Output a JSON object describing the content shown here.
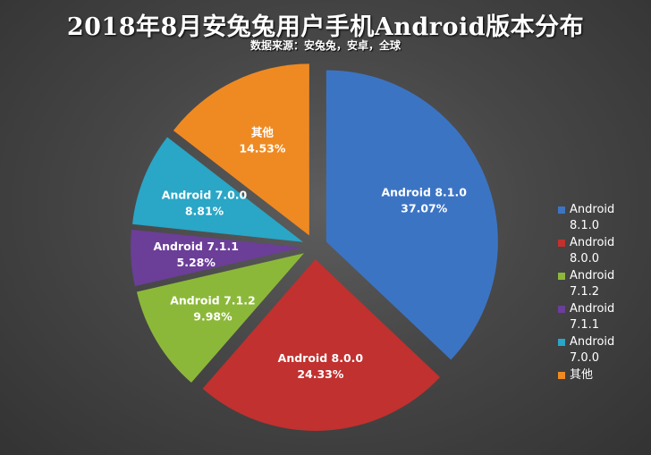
{
  "title": "2018年8月安兔兔用户手机Android版本分布",
  "subtitle": "数据来源：安兔兔，安卓，全球",
  "chart_data": {
    "type": "pie",
    "exploded": true,
    "legend_position": "right",
    "slices": [
      {
        "name": "Android 8.1.0",
        "value": 37.07,
        "label": "37.07%",
        "color": "#3c74c4"
      },
      {
        "name": "Android 8.0.0",
        "value": 24.33,
        "label": "24.33%",
        "color": "#c0312f"
      },
      {
        "name": "Android 7.1.2",
        "value": 9.98,
        "label": "9.98%",
        "color": "#8cb83a"
      },
      {
        "name": "Android 7.1.1",
        "value": 5.28,
        "label": "5.28%",
        "color": "#6b3e98"
      },
      {
        "name": "Android 7.0.0",
        "value": 8.81,
        "label": "8.81%",
        "color": "#2aa6c6"
      },
      {
        "name": "其他",
        "value": 14.53,
        "label": "14.53%",
        "color": "#ef8a22"
      }
    ]
  }
}
